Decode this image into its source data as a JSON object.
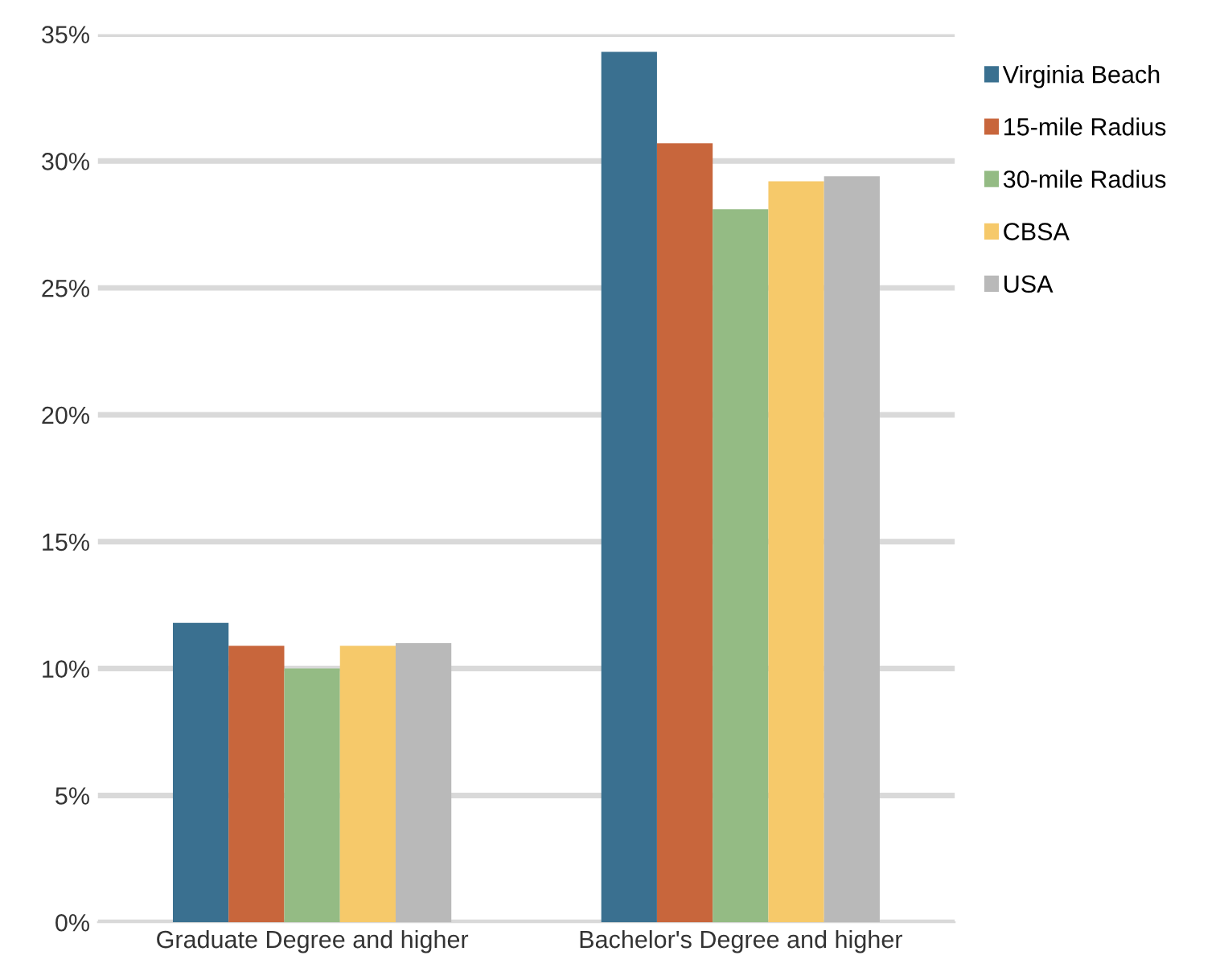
{
  "chart_data": {
    "type": "bar",
    "categories": [
      "Graduate Degree and higher",
      "Bachelor's Degree and higher"
    ],
    "series": [
      {
        "name": "Virginia Beach",
        "color": "#3a7090",
        "values": [
          11.8,
          34.3
        ]
      },
      {
        "name": "15-mile Radius",
        "color": "#c8663c",
        "values": [
          10.9,
          30.7
        ]
      },
      {
        "name": "30-mile Radius",
        "color": "#94bb84",
        "values": [
          10.0,
          28.1
        ]
      },
      {
        "name": "CBSA",
        "color": "#f6c96a",
        "values": [
          10.9,
          29.2
        ]
      },
      {
        "name": "USA",
        "color": "#b9b9b9",
        "values": [
          11.0,
          29.4
        ]
      }
    ],
    "ylim": [
      0,
      35
    ],
    "yticks": [
      {
        "value": 0,
        "label": "0%"
      },
      {
        "value": 5,
        "label": "5%"
      },
      {
        "value": 10,
        "label": "10%"
      },
      {
        "value": 15,
        "label": "15%"
      },
      {
        "value": 20,
        "label": "20%"
      },
      {
        "value": 25,
        "label": "25%"
      },
      {
        "value": 30,
        "label": "30%"
      },
      {
        "value": 35,
        "label": "35%"
      }
    ],
    "grid": "y",
    "legend": "right"
  }
}
